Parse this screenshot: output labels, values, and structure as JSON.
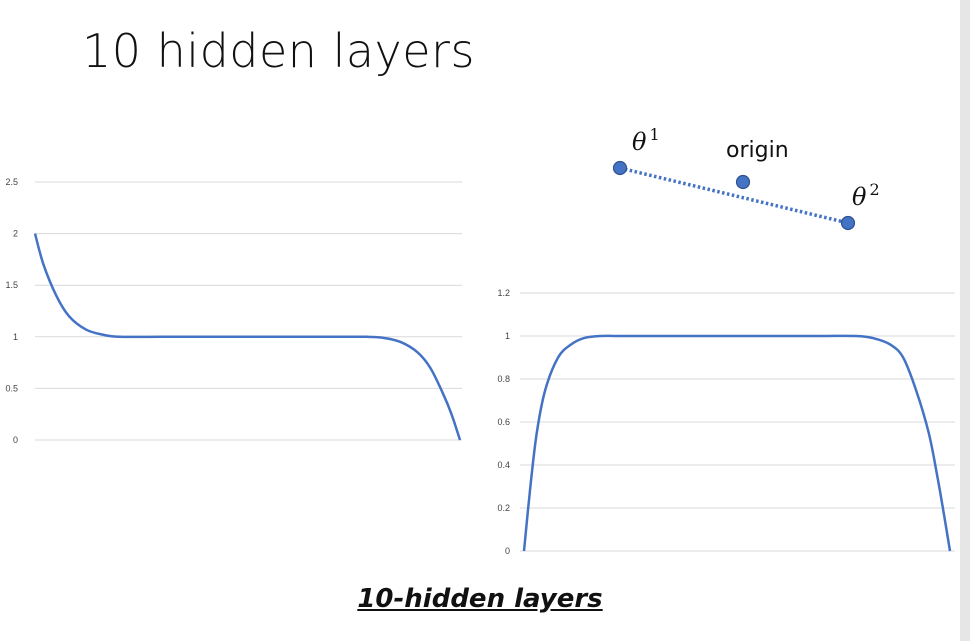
{
  "slide": {
    "title": "10 hidden layers",
    "caption": "10-hidden layers"
  },
  "diagram": {
    "theta1": {
      "symbol": "θ",
      "sup": "1"
    },
    "origin": "origin",
    "theta2": {
      "symbol": "θ",
      "sup": "2"
    },
    "point_color": "#4472c4"
  },
  "chart_data": [
    {
      "type": "line",
      "title": "",
      "xlabel": "",
      "ylabel": "",
      "ylim": [
        0,
        2.5
      ],
      "yticks": [
        "0",
        "0.5",
        "1",
        "1.5",
        "2",
        "2.5"
      ],
      "grid": true,
      "series": [
        {
          "color": "#4472c4",
          "x": [
            0,
            0.02,
            0.05,
            0.08,
            0.12,
            0.16,
            0.2,
            0.3,
            0.4,
            0.5,
            0.6,
            0.7,
            0.78,
            0.82,
            0.86,
            0.9,
            0.93,
            0.96,
            0.98,
            1.0
          ],
          "y": [
            2.0,
            1.7,
            1.4,
            1.2,
            1.07,
            1.02,
            1.0,
            1.0,
            1.0,
            1.0,
            1.0,
            1.0,
            1.0,
            0.99,
            0.95,
            0.85,
            0.7,
            0.45,
            0.25,
            0.0
          ]
        }
      ]
    },
    {
      "type": "line",
      "title": "",
      "xlabel": "",
      "ylabel": "",
      "ylim": [
        0,
        1.2
      ],
      "yticks": [
        "0",
        "0.2",
        "0.4",
        "0.6",
        "0.8",
        "1",
        "1.2"
      ],
      "grid": true,
      "series": [
        {
          "color": "#4472c4",
          "x": [
            0,
            0.015,
            0.03,
            0.05,
            0.08,
            0.11,
            0.14,
            0.18,
            0.22,
            0.3,
            0.4,
            0.5,
            0.6,
            0.7,
            0.78,
            0.82,
            0.86,
            0.89,
            0.92,
            0.95,
            0.97,
            0.985,
            1.0
          ],
          "y": [
            0.0,
            0.3,
            0.55,
            0.75,
            0.9,
            0.96,
            0.99,
            1.0,
            1.0,
            1.0,
            1.0,
            1.0,
            1.0,
            1.0,
            1.0,
            0.99,
            0.96,
            0.9,
            0.75,
            0.55,
            0.35,
            0.18,
            0.0
          ]
        }
      ]
    }
  ]
}
